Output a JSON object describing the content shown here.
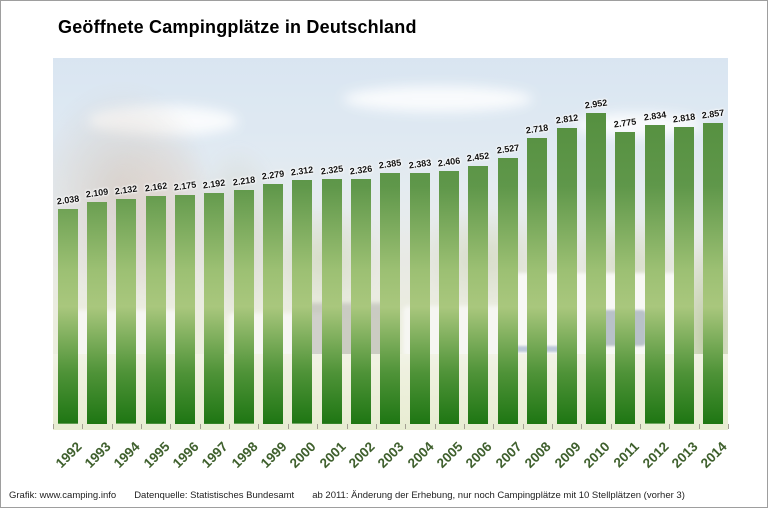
{
  "page": {
    "title": "Geöffnete Campingplätze in Deutschland"
  },
  "chart_data": {
    "type": "bar",
    "title": "Geöffnete Campingplätze in Deutschland",
    "categories": [
      "1992",
      "1993",
      "1994",
      "1995",
      "1996",
      "1997",
      "1998",
      "1999",
      "2000",
      "2001",
      "2002",
      "2003",
      "2004",
      "2005",
      "2006",
      "2007",
      "2008",
      "2009",
      "2010",
      "2011",
      "2012",
      "2013",
      "2014"
    ],
    "values": [
      2038,
      2109,
      2132,
      2162,
      2175,
      2192,
      2218,
      2279,
      2312,
      2325,
      2326,
      2385,
      2383,
      2406,
      2452,
      2527,
      2718,
      2812,
      2952,
      2775,
      2834,
      2818,
      2857
    ],
    "value_labels": [
      "2.038",
      "2.109",
      "2.132",
      "2.162",
      "2.175",
      "2.192",
      "2.218",
      "2.279",
      "2.312",
      "2.325",
      "2.326",
      "2.385",
      "2.383",
      "2.406",
      "2.452",
      "2.527",
      "2.718",
      "2.812",
      "2.952",
      "2.775",
      "2.834",
      "2.818",
      "2.857"
    ],
    "xlabel": "",
    "ylabel": "",
    "ylim": [
      0,
      3100
    ],
    "grid": false,
    "legend": "none",
    "background": "faded campsite photo (sky, trees, caravans, grass)",
    "colors": {
      "bar_top": "#4e8a38",
      "bar_light": "#a9c77d",
      "bar_bottom": "#1e7613",
      "year_labels": "#3e5f2c",
      "value_labels": "#111111"
    }
  },
  "footer": {
    "credit": "Grafik: www.camping.info",
    "source": "Datenquelle: Statistisches Bundesamt",
    "note": "ab 2011: Änderung der Erhebung, nur noch Campingplätze mit 10 Stellplätzen (vorher 3)"
  }
}
